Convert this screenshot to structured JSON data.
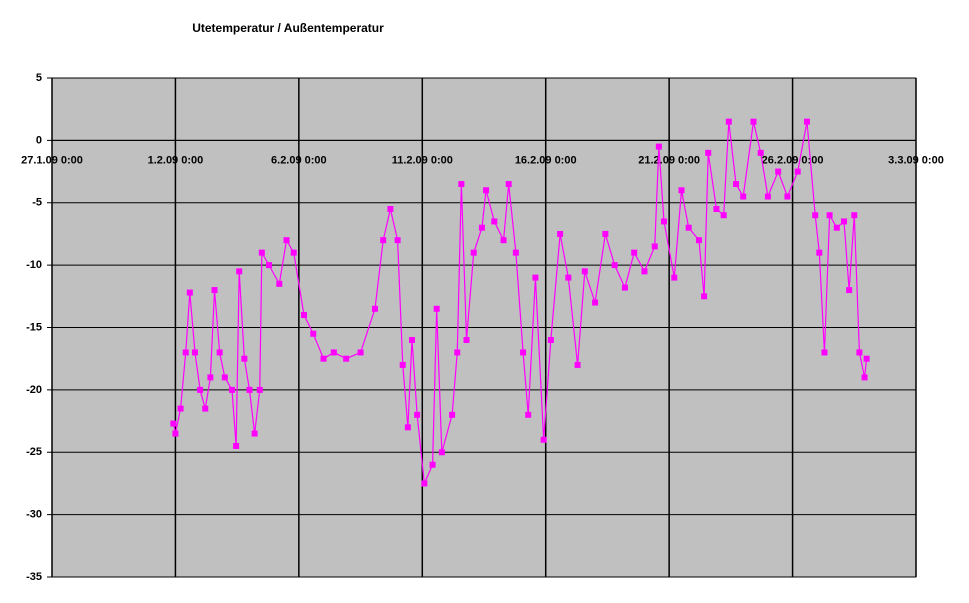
{
  "chart_data": {
    "type": "line",
    "title": "Utetemperatur / Außentemperatur",
    "x": [
      "2009-01-31T22:00",
      "2009-02-01T00:00",
      "2009-02-01T05:00",
      "2009-02-01T10:00",
      "2009-02-01T14:00",
      "2009-02-01T19:00",
      "2009-02-02T00:00",
      "2009-02-02T05:00",
      "2009-02-02T10:00",
      "2009-02-02T14:00",
      "2009-02-02T19:00",
      "2009-02-03T00:00",
      "2009-02-03T07:00",
      "2009-02-03T11:00",
      "2009-02-03T14:00",
      "2009-02-03T19:00",
      "2009-02-04T00:00",
      "2009-02-04T05:00",
      "2009-02-04T10:00",
      "2009-02-04T12:00",
      "2009-02-04T19:00",
      "2009-02-05T05:00",
      "2009-02-05T12:00",
      "2009-02-05T19:00",
      "2009-02-06T05:00",
      "2009-02-06T14:00",
      "2009-02-07T00:00",
      "2009-02-07T10:00",
      "2009-02-07T22:00",
      "2009-02-08T12:00",
      "2009-02-09T02:00",
      "2009-02-09T10:00",
      "2009-02-09T17:00",
      "2009-02-10T00:00",
      "2009-02-10T05:00",
      "2009-02-10T10:00",
      "2009-02-10T14:00",
      "2009-02-10T19:00",
      "2009-02-11T02:00",
      "2009-02-11T10:00",
      "2009-02-11T14:00",
      "2009-02-11T19:00",
      "2009-02-12T05:00",
      "2009-02-12T10:00",
      "2009-02-12T14:00",
      "2009-02-12T19:00",
      "2009-02-13T02:00",
      "2009-02-13T10:00",
      "2009-02-13T14:00",
      "2009-02-13T22:00",
      "2009-02-14T07:00",
      "2009-02-14T12:00",
      "2009-02-14T19:00",
      "2009-02-15T02:00",
      "2009-02-15T07:00",
      "2009-02-15T14:00",
      "2009-02-15T22:00",
      "2009-02-16T05:00",
      "2009-02-16T14:00",
      "2009-02-16T22:00",
      "2009-02-17T07:00",
      "2009-02-17T14:00",
      "2009-02-18T00:00",
      "2009-02-18T10:00",
      "2009-02-18T19:00",
      "2009-02-19T05:00",
      "2009-02-19T14:00",
      "2009-02-20T00:00",
      "2009-02-20T10:00",
      "2009-02-20T14:00",
      "2009-02-20T19:00",
      "2009-02-21T05:00",
      "2009-02-21T12:00",
      "2009-02-21T19:00",
      "2009-02-22T05:00",
      "2009-02-22T10:00",
      "2009-02-22T14:00",
      "2009-02-22T22:00",
      "2009-02-23T05:00",
      "2009-02-23T10:00",
      "2009-02-23T17:00",
      "2009-02-24T00:00",
      "2009-02-24T10:00",
      "2009-02-24T17:00",
      "2009-02-25T00:00",
      "2009-02-25T10:00",
      "2009-02-25T19:00",
      "2009-02-26T05:00",
      "2009-02-26T14:00",
      "2009-02-26T22:00",
      "2009-02-27T02:00",
      "2009-02-27T07:00",
      "2009-02-27T12:00",
      "2009-02-27T19:00",
      "2009-02-28T02:00",
      "2009-02-28T07:00",
      "2009-02-28T12:00",
      "2009-02-28T17:00",
      "2009-02-28T22:00",
      "2009-03-01T00:00"
    ],
    "series": [
      {
        "color": "#ff00ff",
        "values": [
          -22.7,
          -23.5,
          -21.5,
          -17,
          -12.2,
          -17,
          -20,
          -21.5,
          -19,
          -12,
          -17,
          -19,
          -20,
          -24.5,
          -10.5,
          -17.5,
          -20,
          -23.5,
          -20,
          -9,
          -10,
          -11.5,
          -8,
          -9,
          -14,
          -15.5,
          -17.5,
          -17,
          -17.5,
          -17,
          -13.5,
          -8,
          -5.5,
          -8,
          -18,
          -23,
          -16,
          -22,
          -27.5,
          -26,
          -13.5,
          -25,
          -22,
          -17,
          -3.5,
          -16,
          -9,
          -7,
          -4,
          -6.5,
          -8,
          -3.5,
          -9,
          -17,
          -22,
          -11,
          -24,
          -16,
          -7.5,
          -11,
          -18,
          -10.5,
          -13,
          -7.5,
          -10,
          -11.8,
          -9,
          -10.5,
          -8.5,
          -0.5,
          -6.5,
          -11,
          -4,
          -7,
          -8,
          -12.5,
          -1,
          -5.5,
          -6,
          1.5,
          -3.5,
          -4.5,
          1.5,
          -1,
          -4.5,
          -2.5,
          -4.5,
          -2.5,
          1.5,
          -6,
          -9,
          -17,
          -6,
          -7,
          -6.5,
          -12,
          -6,
          -17,
          -19,
          -17.5
        ]
      }
    ],
    "xlim": [
      "2009-01-27T00:00",
      "2009-03-03T00:00"
    ],
    "xticks": [
      {
        "value": "2009-01-27T00:00",
        "label": "27.1.09 0:00"
      },
      {
        "value": "2009-02-01T00:00",
        "label": "1.2.09 0:00"
      },
      {
        "value": "2009-02-06T00:00",
        "label": "6.2.09 0:00"
      },
      {
        "value": "2009-02-11T00:00",
        "label": "11.2.09 0:00"
      },
      {
        "value": "2009-02-16T00:00",
        "label": "16.2.09 0:00"
      },
      {
        "value": "2009-02-21T00:00",
        "label": "21.2.09 0:00"
      },
      {
        "value": "2009-02-26T00:00",
        "label": "26.2.09 0:00"
      },
      {
        "value": "2009-03-03T00:00",
        "label": "3.3.09 0:00"
      }
    ],
    "ylim": [
      -35,
      5
    ],
    "yticks": [
      -35,
      -30,
      -25,
      -20,
      -15,
      -10,
      -5,
      0,
      5
    ],
    "grid": true
  }
}
